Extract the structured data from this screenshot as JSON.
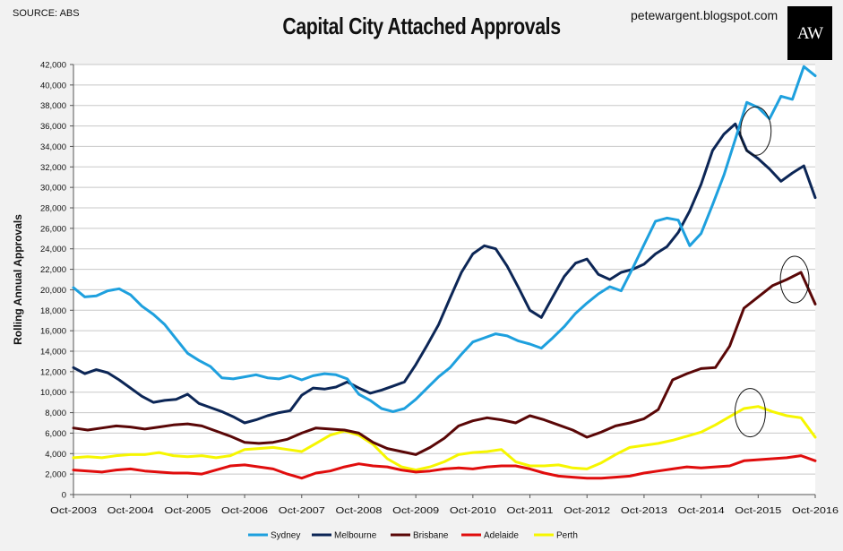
{
  "source": "SOURCE: ABS",
  "blog": "petewargent.blogspot.com",
  "logo_text": "AW",
  "chart_data": {
    "type": "line",
    "title": "Capital City Attached Approvals",
    "xlabel": "",
    "ylabel": "Rolling Annual Approvals",
    "ylim": [
      0,
      42000
    ],
    "yticks": [
      0,
      2000,
      4000,
      6000,
      8000,
      10000,
      12000,
      14000,
      16000,
      18000,
      20000,
      22000,
      24000,
      26000,
      28000,
      30000,
      32000,
      34000,
      36000,
      38000,
      40000,
      42000
    ],
    "ytick_labels": [
      "0",
      "2,000",
      "4,000",
      "6,000",
      "8,000",
      "10,000",
      "12,000",
      "14,000",
      "16,000",
      "18,000",
      "20,000",
      "22,000",
      "24,000",
      "26,000",
      "28,000",
      "30,000",
      "32,000",
      "34,000",
      "36,000",
      "38,000",
      "40,000",
      "42,000"
    ],
    "xlim": [
      0,
      13
    ],
    "xticks": [
      0,
      1,
      2,
      3,
      4,
      5,
      6,
      7,
      8,
      9,
      10,
      11,
      12,
      13
    ],
    "xtick_labels": [
      "Oct-2003",
      "Oct-2004",
      "Oct-2005",
      "Oct-2006",
      "Oct-2007",
      "Oct-2008",
      "Oct-2009",
      "Oct-2010",
      "Oct-2011",
      "Oct-2012",
      "Oct-2013",
      "Oct-2014",
      "Oct-2015",
      "Oct-2016"
    ],
    "grid": true,
    "legend_position": "bottom",
    "series": [
      {
        "name": "Sydney",
        "color": "#1ea0de",
        "x": [
          0,
          0.2,
          0.4,
          0.6,
          0.8,
          1.0,
          1.2,
          1.4,
          1.6,
          1.8,
          2.0,
          2.2,
          2.4,
          2.6,
          2.8,
          3.0,
          3.2,
          3.4,
          3.6,
          3.8,
          4.0,
          4.2,
          4.4,
          4.6,
          4.8,
          5.0,
          5.2,
          5.4,
          5.6,
          5.8,
          6.0,
          6.2,
          6.4,
          6.6,
          6.8,
          7.0,
          7.2,
          7.4,
          7.6,
          7.8,
          8.0,
          8.2,
          8.4,
          8.6,
          8.8,
          9.0,
          9.2,
          9.4,
          9.6,
          9.8,
          10.0,
          10.2,
          10.4,
          10.6,
          10.8,
          11.0,
          11.2,
          11.4,
          11.6,
          11.8,
          12.0,
          12.2,
          12.4,
          12.6,
          12.8,
          13.0
        ],
        "values": [
          20200,
          19300,
          19400,
          19900,
          20100,
          19500,
          18400,
          17600,
          16600,
          15200,
          13800,
          13100,
          12500,
          11400,
          11300,
          11500,
          11700,
          11400,
          11300,
          11600,
          11200,
          11600,
          11800,
          11700,
          11300,
          9800,
          9200,
          8400,
          8100,
          8400,
          9300,
          10400,
          11500,
          12400,
          13700,
          14900,
          15300,
          15700,
          15500,
          15000,
          14700,
          14300,
          15300,
          16400,
          17700,
          18700,
          19600,
          20300,
          19900,
          22100,
          24400,
          26700,
          27000,
          26800,
          24300,
          25500,
          28300,
          31200,
          34700,
          38300,
          37800,
          36700,
          38900,
          38600,
          41800,
          40900
        ]
      },
      {
        "name": "Melbourne",
        "color": "#0c2656",
        "x": [
          0,
          0.2,
          0.4,
          0.6,
          0.8,
          1.0,
          1.2,
          1.4,
          1.6,
          1.8,
          2.0,
          2.2,
          2.4,
          2.6,
          2.8,
          3.0,
          3.2,
          3.4,
          3.6,
          3.8,
          4.0,
          4.2,
          4.4,
          4.6,
          4.8,
          5.0,
          5.2,
          5.4,
          5.6,
          5.8,
          6.0,
          6.2,
          6.4,
          6.6,
          6.8,
          7.0,
          7.2,
          7.4,
          7.6,
          7.8,
          8.0,
          8.2,
          8.4,
          8.6,
          8.8,
          9.0,
          9.2,
          9.4,
          9.6,
          9.8,
          10.0,
          10.2,
          10.4,
          10.6,
          10.8,
          11.0,
          11.2,
          11.4,
          11.6,
          11.8,
          12.0,
          12.2,
          12.4,
          12.6,
          12.8,
          13.0
        ],
        "values": [
          12400,
          11800,
          12200,
          11900,
          11200,
          10400,
          9600,
          9000,
          9200,
          9300,
          9800,
          8900,
          8500,
          8100,
          7600,
          7000,
          7300,
          7700,
          8000,
          8200,
          9700,
          10400,
          10300,
          10500,
          11000,
          10400,
          9900,
          10200,
          10600,
          11000,
          12700,
          14600,
          16600,
          19200,
          21700,
          23500,
          24300,
          24000,
          22300,
          20200,
          18000,
          17300,
          19300,
          21300,
          22600,
          23000,
          21500,
          21000,
          21700,
          22000,
          22500,
          23500,
          24200,
          25600,
          27700,
          30300,
          33600,
          35200,
          36200,
          33600,
          32800,
          31800,
          30600,
          31400,
          32100,
          29000
        ]
      },
      {
        "name": "Brisbane",
        "color": "#5a0707",
        "x": [
          0,
          0.25,
          0.5,
          0.75,
          1.0,
          1.25,
          1.5,
          1.75,
          2.0,
          2.25,
          2.5,
          2.75,
          3.0,
          3.25,
          3.5,
          3.75,
          4.0,
          4.25,
          4.5,
          4.75,
          5.0,
          5.25,
          5.5,
          5.75,
          6.0,
          6.25,
          6.5,
          6.75,
          7.0,
          7.25,
          7.5,
          7.75,
          8.0,
          8.25,
          8.5,
          8.75,
          9.0,
          9.25,
          9.5,
          9.75,
          10.0,
          10.25,
          10.5,
          10.75,
          11.0,
          11.25,
          11.5,
          11.75,
          12.0,
          12.25,
          12.5,
          12.75,
          13.0
        ],
        "values": [
          6500,
          6300,
          6500,
          6700,
          6600,
          6400,
          6600,
          6800,
          6900,
          6700,
          6200,
          5700,
          5100,
          5000,
          5100,
          5400,
          6000,
          6500,
          6400,
          6300,
          6000,
          5100,
          4500,
          4200,
          3900,
          4600,
          5500,
          6700,
          7200,
          7500,
          7300,
          7000,
          7700,
          7300,
          6800,
          6300,
          5600,
          6100,
          6700,
          7000,
          7400,
          8300,
          11200,
          11800,
          12300,
          12400,
          14500,
          18200,
          19300,
          20400,
          21000,
          21700,
          18600
        ]
      },
      {
        "name": "Adelaide",
        "color": "#e00d0d",
        "x": [
          0,
          0.25,
          0.5,
          0.75,
          1.0,
          1.25,
          1.5,
          1.75,
          2.0,
          2.25,
          2.5,
          2.75,
          3.0,
          3.25,
          3.5,
          3.75,
          4.0,
          4.25,
          4.5,
          4.75,
          5.0,
          5.25,
          5.5,
          5.75,
          6.0,
          6.25,
          6.5,
          6.75,
          7.0,
          7.25,
          7.5,
          7.75,
          8.0,
          8.25,
          8.5,
          8.75,
          9.0,
          9.25,
          9.5,
          9.75,
          10.0,
          10.25,
          10.5,
          10.75,
          11.0,
          11.25,
          11.5,
          11.75,
          12.0,
          12.25,
          12.5,
          12.75,
          13.0
        ],
        "values": [
          2400,
          2300,
          2200,
          2400,
          2500,
          2300,
          2200,
          2100,
          2100,
          2000,
          2400,
          2800,
          2900,
          2700,
          2500,
          2000,
          1600,
          2100,
          2300,
          2700,
          3000,
          2800,
          2700,
          2400,
          2200,
          2300,
          2500,
          2600,
          2500,
          2700,
          2800,
          2800,
          2500,
          2100,
          1800,
          1700,
          1600,
          1600,
          1700,
          1800,
          2100,
          2300,
          2500,
          2700,
          2600,
          2700,
          2800,
          3300,
          3400,
          3500,
          3600,
          3800,
          3300
        ]
      },
      {
        "name": "Perth",
        "color": "#f6f600",
        "x": [
          0,
          0.25,
          0.5,
          0.75,
          1.0,
          1.25,
          1.5,
          1.75,
          2.0,
          2.25,
          2.5,
          2.75,
          3.0,
          3.25,
          3.5,
          3.75,
          4.0,
          4.25,
          4.5,
          4.75,
          5.0,
          5.25,
          5.5,
          5.75,
          6.0,
          6.25,
          6.5,
          6.75,
          7.0,
          7.25,
          7.5,
          7.75,
          8.0,
          8.25,
          8.5,
          8.75,
          9.0,
          9.25,
          9.5,
          9.75,
          10.0,
          10.25,
          10.5,
          10.75,
          11.0,
          11.25,
          11.5,
          11.75,
          12.0,
          12.25,
          12.5,
          12.75,
          13.0
        ],
        "values": [
          3600,
          3700,
          3600,
          3800,
          3900,
          3900,
          4100,
          3800,
          3700,
          3800,
          3600,
          3800,
          4400,
          4500,
          4600,
          4400,
          4200,
          5000,
          5800,
          6200,
          5800,
          4900,
          3500,
          2700,
          2400,
          2700,
          3200,
          3900,
          4100,
          4200,
          4400,
          3200,
          2800,
          2800,
          2900,
          2600,
          2500,
          3100,
          3900,
          4600,
          4800,
          5000,
          5300,
          5700,
          6100,
          6800,
          7600,
          8400,
          8600,
          8100,
          7700,
          7500,
          5600
        ]
      }
    ]
  }
}
